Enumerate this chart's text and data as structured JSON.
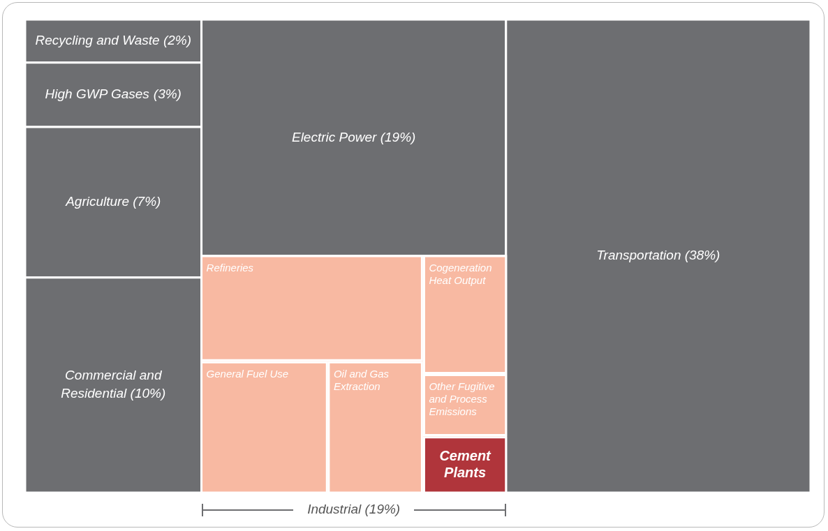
{
  "chart_data": {
    "type": "other",
    "categories": [
      "Recycling and Waste",
      "High GWP Gases",
      "Agriculture",
      "Commercial and Residential",
      "Electric Power",
      "Industrial",
      "Transportation",
      "Refineries",
      "General Fuel Use",
      "Oil and Gas Extraction",
      "Cogeneration Heat Output",
      "Other Fugitive and Process Emissions",
      "Cement Plants"
    ],
    "values": [
      2,
      3,
      7,
      10,
      19,
      19,
      38,
      null,
      null,
      null,
      null,
      null,
      null
    ],
    "value_labels": [
      "(2%)",
      "(3%)",
      "(7%)",
      "(10%)",
      "(19%)",
      "(19%)",
      "(38%)",
      null,
      null,
      null,
      null,
      null,
      null
    ],
    "colors": [
      "#6d6e71",
      "#6d6e71",
      "#6d6e71",
      "#6d6e71",
      "#6d6e71",
      "#f8b9a2",
      "#6d6e71",
      "#f8b9a2",
      "#f8b9a2",
      "#f8b9a2",
      "#f8b9a2",
      "#f8b9a2",
      "#b0353b"
    ]
  }
}
